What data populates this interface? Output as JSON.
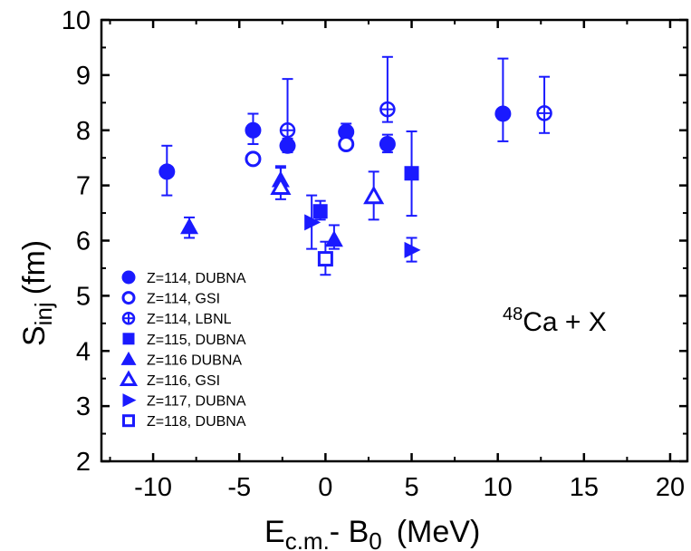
{
  "chart_data": {
    "type": "scatter",
    "xlabel_main": "E",
    "xlabel_sub": "c.m.",
    "xlabel_mid": "- B",
    "xlabel_sub2": "0",
    "xlabel_unit": "(MeV)",
    "ylabel_main": "S",
    "ylabel_sub": "inj",
    "ylabel_unit": "(fm)",
    "xlim": [
      -13,
      21
    ],
    "ylim": [
      2,
      10
    ],
    "xticks": [
      -10,
      -5,
      0,
      5,
      10,
      15,
      20
    ],
    "yticks": [
      2,
      3,
      4,
      5,
      6,
      7,
      8,
      9,
      10
    ],
    "xtick_labels": [
      "-10",
      "-5",
      "0",
      "5",
      "10",
      "15",
      "20"
    ],
    "ytick_labels": [
      "2",
      "3",
      "4",
      "5",
      "6",
      "7",
      "8",
      "9",
      "10"
    ],
    "annotation_sup": "48",
    "annotation_text": "Ca + X",
    "color": "#1a1aff",
    "series": [
      {
        "name": "Z=114, DUBNA",
        "marker": "circle-filled",
        "points": [
          {
            "x": -9.2,
            "y": 7.25,
            "lo": 6.82,
            "hi": 7.72
          },
          {
            "x": -4.2,
            "y": 8.0,
            "lo": 7.75,
            "hi": 8.3
          },
          {
            "x": -2.2,
            "y": 7.72,
            "lo": 7.6,
            "hi": 8.0
          },
          {
            "x": 1.2,
            "y": 7.97,
            "lo": 7.88,
            "hi": 8.12
          },
          {
            "x": 3.6,
            "y": 7.75,
            "lo": 7.6,
            "hi": 7.92
          },
          {
            "x": 10.3,
            "y": 8.3,
            "lo": 7.8,
            "hi": 9.3
          }
        ]
      },
      {
        "name": "Z=114, GSI",
        "marker": "circle-open",
        "points": [
          {
            "x": -4.2,
            "y": 7.48
          },
          {
            "x": 1.2,
            "y": 7.75
          }
        ]
      },
      {
        "name": "Z=114, LBNL",
        "marker": "circle-cross",
        "points": [
          {
            "x": -2.2,
            "y": 8.0,
            "lo": 7.85,
            "hi": 8.93
          },
          {
            "x": 3.6,
            "y": 8.38,
            "lo": 8.15,
            "hi": 9.33
          },
          {
            "x": 12.7,
            "y": 8.31,
            "lo": 7.95,
            "hi": 8.97
          }
        ]
      },
      {
        "name": "Z=115, DUBNA",
        "marker": "square-filled",
        "points": [
          {
            "x": -0.3,
            "y": 6.53,
            "lo": 6.38,
            "hi": 6.72
          },
          {
            "x": 5.0,
            "y": 7.22,
            "lo": 6.45,
            "hi": 7.98
          }
        ]
      },
      {
        "name": "Z=116 DUBNA",
        "marker": "triangle-up-filled",
        "points": [
          {
            "x": -7.9,
            "y": 6.25,
            "lo": 6.05,
            "hi": 6.42
          },
          {
            "x": -2.6,
            "y": 7.1,
            "lo": 6.85,
            "hi": 7.32
          },
          {
            "x": 0.5,
            "y": 6.02,
            "lo": 5.85,
            "hi": 6.28
          }
        ]
      },
      {
        "name": "Z=116, GSI",
        "marker": "triangle-up-open",
        "points": [
          {
            "x": -2.6,
            "y": 6.97,
            "lo": 6.75,
            "hi": 7.35
          },
          {
            "x": 2.8,
            "y": 6.8,
            "lo": 6.38,
            "hi": 7.25
          }
        ]
      },
      {
        "name": "Z=117, DUBNA",
        "marker": "triangle-right-filled",
        "points": [
          {
            "x": -0.8,
            "y": 6.33,
            "lo": 5.85,
            "hi": 6.82
          },
          {
            "x": 5.0,
            "y": 5.83,
            "lo": 5.62,
            "hi": 6.05
          }
        ]
      },
      {
        "name": "Z=118, DUBNA",
        "marker": "square-open",
        "points": [
          {
            "x": 0.0,
            "y": 5.67,
            "lo": 5.38,
            "hi": 5.98
          }
        ]
      }
    ]
  }
}
